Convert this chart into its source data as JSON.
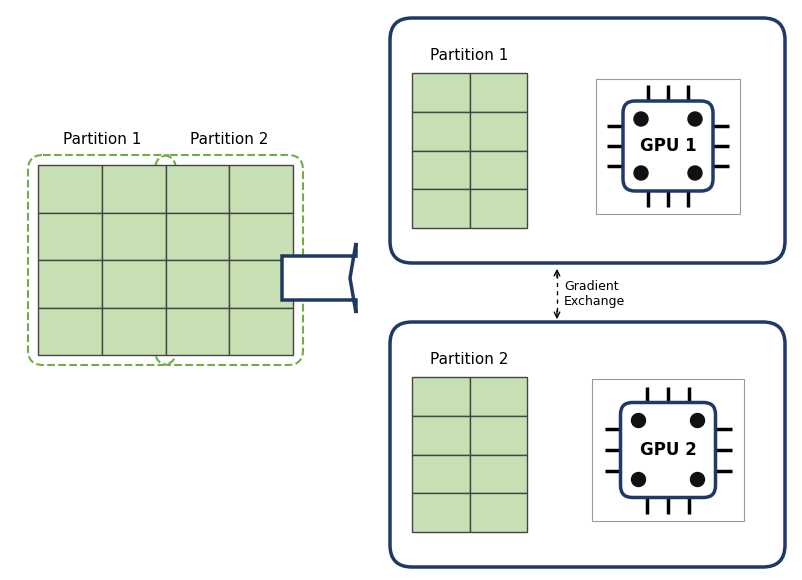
{
  "bg_color": "#ffffff",
  "dark_blue": "#1f3864",
  "green_fill": "#c6e0b4",
  "green_border": "#70ad47",
  "left_panel_label1": "Partition 1",
  "left_panel_label2": "Partition 2",
  "gpu1_label": "GPU 1",
  "gpu2_label": "GPU 2",
  "part1_label": "Partition 1",
  "part2_label": "Partition 2",
  "gradient_label": "Gradient\nExchange"
}
